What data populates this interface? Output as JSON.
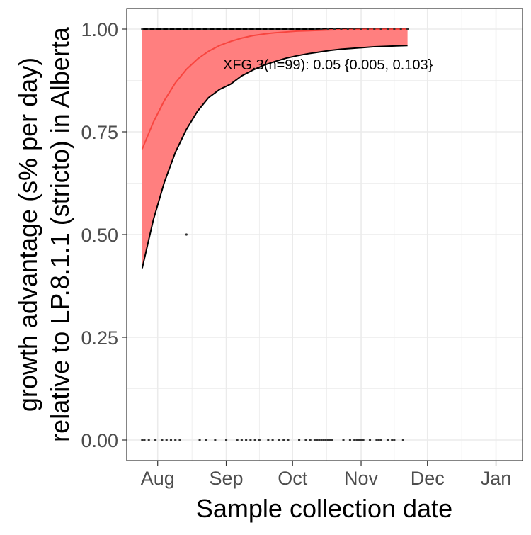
{
  "chart_data": {
    "type": "line",
    "xlabel": "Sample collection date",
    "ylabel_lines": [
      "growth advantage (s% per day)",
      "relative to LP.8.1.1 (stricto) in Alberta"
    ],
    "x_ticks": [
      {
        "label": "Aug",
        "date": "2025-08-01"
      },
      {
        "label": "Sep",
        "date": "2025-09-01"
      },
      {
        "label": "Oct",
        "date": "2025-10-01"
      },
      {
        "label": "Nov",
        "date": "2025-11-01"
      },
      {
        "label": "Dec",
        "date": "2025-12-01"
      },
      {
        "label": "Jan",
        "date": "2026-01-01"
      }
    ],
    "xlim": [
      "2025-07-18",
      "2026-01-13"
    ],
    "y_ticks": [
      "0.00",
      "0.25",
      "0.50",
      "0.75",
      "1.00"
    ],
    "ylim": [
      -0.05,
      1.05
    ],
    "grid": true,
    "annotation": "XFG.3(n=99): 0.05 {0.005, 0.103}",
    "colors": {
      "fit_line": "#f8453f",
      "ribbon_fill": "#ff7f7f",
      "ribbon_edge": "#000000",
      "points": "#333333",
      "grid": "#ebebeb",
      "panel_border": "#333333"
    },
    "series": [
      {
        "role": "fitted",
        "x": [
          "2025-07-25",
          "2025-07-30",
          "2025-08-04",
          "2025-08-09",
          "2025-08-14",
          "2025-08-19",
          "2025-08-24",
          "2025-08-29",
          "2025-09-03",
          "2025-09-08",
          "2025-09-13",
          "2025-09-18",
          "2025-09-23",
          "2025-09-28",
          "2025-10-03",
          "2025-10-08",
          "2025-10-13",
          "2025-10-18",
          "2025-10-23",
          "2025-10-28",
          "2025-11-02",
          "2025-11-07",
          "2025-11-12",
          "2025-11-17",
          "2025-11-22"
        ],
        "y": [
          0.708,
          0.773,
          0.826,
          0.869,
          0.902,
          0.927,
          0.946,
          0.96,
          0.97,
          0.978,
          0.984,
          0.988,
          0.991,
          0.993,
          0.995,
          0.996,
          0.997,
          0.998,
          0.9985,
          0.999,
          0.9993,
          0.9995,
          0.9996,
          0.9997,
          0.9998
        ]
      },
      {
        "role": "lower_bound",
        "x": [
          "2025-07-25",
          "2025-07-30",
          "2025-08-04",
          "2025-08-09",
          "2025-08-14",
          "2025-08-19",
          "2025-08-24",
          "2025-08-29",
          "2025-09-03",
          "2025-09-08",
          "2025-09-13",
          "2025-09-18",
          "2025-09-23",
          "2025-09-28",
          "2025-10-03",
          "2025-10-08",
          "2025-10-13",
          "2025-10-18",
          "2025-10-23",
          "2025-10-28",
          "2025-11-02",
          "2025-11-07",
          "2025-11-12",
          "2025-11-17",
          "2025-11-22"
        ],
        "y": [
          0.418,
          0.535,
          0.627,
          0.7,
          0.756,
          0.8,
          0.833,
          0.853,
          0.866,
          0.886,
          0.9,
          0.912,
          0.921,
          0.929,
          0.935,
          0.94,
          0.944,
          0.948,
          0.951,
          0.953,
          0.955,
          0.957,
          0.958,
          0.959,
          0.96
        ]
      },
      {
        "role": "upper_bound",
        "x": [
          "2025-07-25",
          "2025-11-22"
        ],
        "y": [
          1.0,
          1.0
        ]
      },
      {
        "role": "observations",
        "points": [
          {
            "x": "2025-08-14",
            "y": 0.5
          },
          {
            "x": "2025-07-25",
            "y": 0
          },
          {
            "x": "2025-07-26",
            "y": 0
          },
          {
            "x": "2025-07-28",
            "y": 0
          },
          {
            "x": "2025-07-31",
            "y": 0
          },
          {
            "x": "2025-08-03",
            "y": 0
          },
          {
            "x": "2025-08-05",
            "y": 0
          },
          {
            "x": "2025-08-07",
            "y": 0
          },
          {
            "x": "2025-08-09",
            "y": 0
          },
          {
            "x": "2025-08-11",
            "y": 0
          },
          {
            "x": "2025-08-20",
            "y": 0
          },
          {
            "x": "2025-08-23",
            "y": 0
          },
          {
            "x": "2025-08-27",
            "y": 0
          },
          {
            "x": "2025-09-01",
            "y": 0
          },
          {
            "x": "2025-09-06",
            "y": 0
          },
          {
            "x": "2025-09-08",
            "y": 0
          },
          {
            "x": "2025-09-10",
            "y": 0
          },
          {
            "x": "2025-09-12",
            "y": 0
          },
          {
            "x": "2025-09-14",
            "y": 0
          },
          {
            "x": "2025-09-16",
            "y": 0
          },
          {
            "x": "2025-09-20",
            "y": 0
          },
          {
            "x": "2025-09-22",
            "y": 0
          },
          {
            "x": "2025-09-25",
            "y": 0
          },
          {
            "x": "2025-09-27",
            "y": 0
          },
          {
            "x": "2025-09-29",
            "y": 0
          },
          {
            "x": "2025-10-04",
            "y": 0
          },
          {
            "x": "2025-10-07",
            "y": 0
          },
          {
            "x": "2025-10-09",
            "y": 0
          },
          {
            "x": "2025-10-11",
            "y": 0
          },
          {
            "x": "2025-10-12",
            "y": 0
          },
          {
            "x": "2025-10-13",
            "y": 0
          },
          {
            "x": "2025-10-14",
            "y": 0
          },
          {
            "x": "2025-10-15",
            "y": 0
          },
          {
            "x": "2025-10-16",
            "y": 0
          },
          {
            "x": "2025-10-17",
            "y": 0
          },
          {
            "x": "2025-10-18",
            "y": 0
          },
          {
            "x": "2025-10-19",
            "y": 0
          },
          {
            "x": "2025-10-24",
            "y": 0
          },
          {
            "x": "2025-10-27",
            "y": 0
          },
          {
            "x": "2025-10-29",
            "y": 0
          },
          {
            "x": "2025-10-30",
            "y": 0
          },
          {
            "x": "2025-10-31",
            "y": 0
          },
          {
            "x": "2025-11-01",
            "y": 0
          },
          {
            "x": "2025-11-02",
            "y": 0
          },
          {
            "x": "2025-11-05",
            "y": 0
          },
          {
            "x": "2025-11-08",
            "y": 0
          },
          {
            "x": "2025-11-09",
            "y": 0
          },
          {
            "x": "2025-11-10",
            "y": 0
          },
          {
            "x": "2025-11-13",
            "y": 0
          },
          {
            "x": "2025-11-15",
            "y": 0
          },
          {
            "x": "2025-11-16",
            "y": 0
          },
          {
            "x": "2025-11-20",
            "y": 0
          },
          {
            "x": "2025-07-25",
            "y": 1
          },
          {
            "x": "2025-07-28",
            "y": 1
          },
          {
            "x": "2025-07-31",
            "y": 1
          },
          {
            "x": "2025-08-03",
            "y": 1
          },
          {
            "x": "2025-08-06",
            "y": 1
          },
          {
            "x": "2025-08-09",
            "y": 1
          },
          {
            "x": "2025-08-12",
            "y": 1
          },
          {
            "x": "2025-08-15",
            "y": 1
          },
          {
            "x": "2025-08-18",
            "y": 1
          },
          {
            "x": "2025-08-21",
            "y": 1
          },
          {
            "x": "2025-08-24",
            "y": 1
          },
          {
            "x": "2025-08-27",
            "y": 1
          },
          {
            "x": "2025-08-30",
            "y": 1
          },
          {
            "x": "2025-09-02",
            "y": 1
          },
          {
            "x": "2025-09-05",
            "y": 1
          },
          {
            "x": "2025-09-08",
            "y": 1
          },
          {
            "x": "2025-09-11",
            "y": 1
          },
          {
            "x": "2025-09-14",
            "y": 1
          },
          {
            "x": "2025-09-17",
            "y": 1
          },
          {
            "x": "2025-09-20",
            "y": 1
          },
          {
            "x": "2025-09-23",
            "y": 1
          },
          {
            "x": "2025-09-26",
            "y": 1
          },
          {
            "x": "2025-09-29",
            "y": 1
          },
          {
            "x": "2025-10-02",
            "y": 1
          },
          {
            "x": "2025-10-05",
            "y": 1
          },
          {
            "x": "2025-10-08",
            "y": 1
          },
          {
            "x": "2025-10-11",
            "y": 1
          },
          {
            "x": "2025-10-14",
            "y": 1
          },
          {
            "x": "2025-10-17",
            "y": 1
          },
          {
            "x": "2025-10-20",
            "y": 1
          },
          {
            "x": "2025-10-23",
            "y": 1
          },
          {
            "x": "2025-10-26",
            "y": 1
          },
          {
            "x": "2025-10-29",
            "y": 1
          },
          {
            "x": "2025-11-01",
            "y": 1
          },
          {
            "x": "2025-11-04",
            "y": 1
          },
          {
            "x": "2025-11-07",
            "y": 1
          },
          {
            "x": "2025-11-10",
            "y": 1
          },
          {
            "x": "2025-11-13",
            "y": 1
          },
          {
            "x": "2025-11-16",
            "y": 1
          },
          {
            "x": "2025-11-19",
            "y": 1
          },
          {
            "x": "2025-11-22",
            "y": 1
          }
        ]
      }
    ]
  }
}
